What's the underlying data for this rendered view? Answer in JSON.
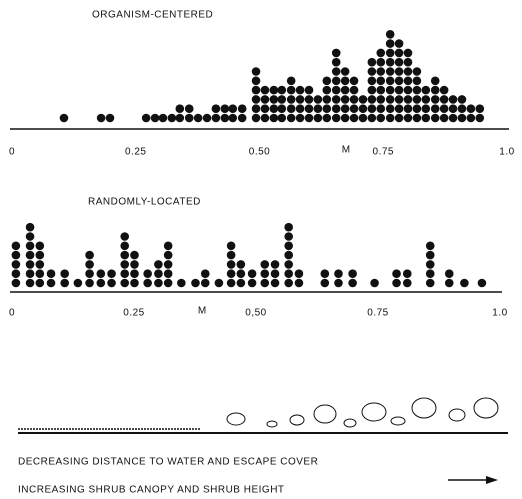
{
  "chart_data": [
    {
      "type": "dot",
      "title": "ORGANISM-CENTERED",
      "color": "#111111",
      "x": [
        0.105,
        0.18,
        0.198,
        0.271,
        0.289,
        0.305,
        0.323,
        0.339,
        0.358,
        0.376,
        0.394,
        0.412,
        0.43,
        0.446,
        0.465,
        0.493,
        0.511,
        0.529,
        0.545,
        0.564,
        0.582,
        0.6,
        0.618,
        0.636,
        0.655,
        0.673,
        0.691,
        0.709,
        0.727,
        0.745,
        0.764,
        0.782,
        0.8,
        0.818,
        0.836,
        0.855,
        0.873,
        0.891,
        0.909,
        0.927,
        0.945
      ],
      "values": [
        1,
        1,
        1,
        1,
        1,
        1,
        1,
        2,
        2,
        1,
        1,
        2,
        2,
        2,
        2,
        6,
        4,
        4,
        4,
        5,
        4,
        4,
        3,
        5,
        8,
        6,
        5,
        3,
        7,
        8,
        10,
        9,
        8,
        6,
        4,
        5,
        4,
        3,
        3,
        2,
        2
      ],
      "xlim": [
        0,
        1
      ],
      "xticks": [
        0,
        0.25,
        {
          "value": 0.5,
          "label": "0.50"
        },
        0.75,
        {
          "value": 1,
          "label": "1.0"
        }
      ],
      "median": {
        "value": 0.675,
        "label": "M"
      }
    },
    {
      "type": "dot",
      "title": "RANDOMLY-LOCATED",
      "color": "#111111",
      "x": [
        0.008,
        0.037,
        0.057,
        0.08,
        0.108,
        0.135,
        0.159,
        0.182,
        0.204,
        0.231,
        0.251,
        0.278,
        0.3,
        0.32,
        0.347,
        0.376,
        0.396,
        0.424,
        0.449,
        0.469,
        0.492,
        0.518,
        0.539,
        0.567,
        0.588,
        0.641,
        0.669,
        0.698,
        0.743,
        0.788,
        0.81,
        0.857,
        0.896,
        0.927,
        0.963
      ],
      "values": [
        5,
        7,
        5,
        2,
        2,
        1,
        4,
        2,
        2,
        6,
        4,
        2,
        3,
        5,
        1,
        1,
        2,
        1,
        5,
        3,
        2,
        3,
        3,
        7,
        2,
        2,
        2,
        2,
        1,
        2,
        2,
        5,
        2,
        1,
        1
      ],
      "xlim": [
        0,
        1
      ],
      "xticks": [
        0,
        0.25,
        {
          "value": 0.5,
          "label": "0,50"
        },
        0.75,
        {
          "value": 1,
          "label": "1.0"
        }
      ],
      "median": {
        "value": 0.39,
        "label": "M"
      }
    }
  ],
  "caption": [
    "DECREASING DISTANCE TO WATER AND ESCAPE COVER",
    "INCREASING SHRUB CANOPY AND SHRUB HEIGHT"
  ]
}
